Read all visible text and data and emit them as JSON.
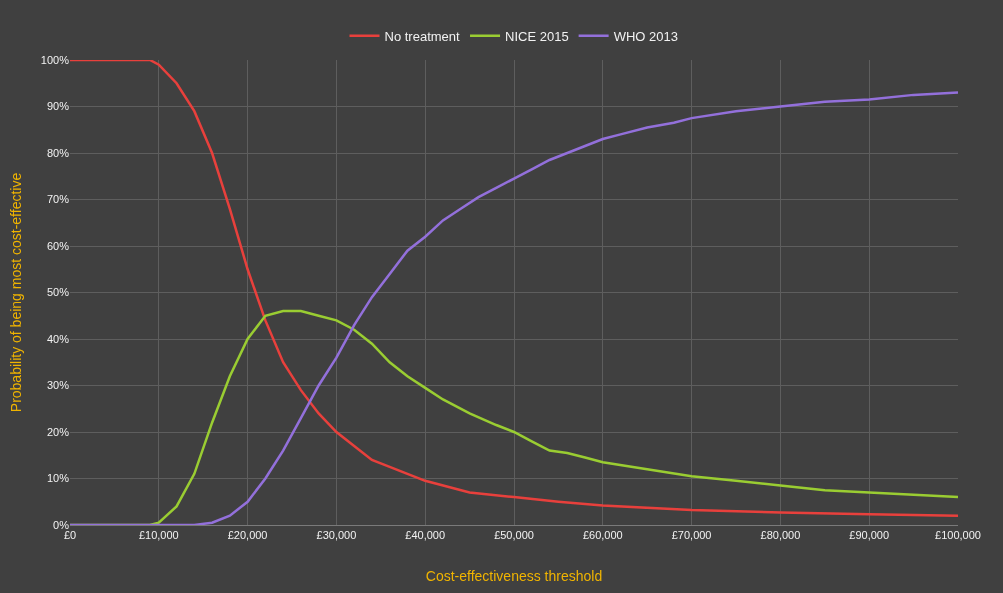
{
  "chart_data": {
    "type": "line",
    "xlabel": "Cost-effectiveness threshold",
    "ylabel": "Probability of being most cost-effective",
    "xlim": [
      0,
      100000
    ],
    "ylim": [
      0,
      100
    ],
    "xticks": [
      {
        "value": 0,
        "label": "£0"
      },
      {
        "value": 10000,
        "label": "£10,000"
      },
      {
        "value": 20000,
        "label": "£20,000"
      },
      {
        "value": 30000,
        "label": "£30,000"
      },
      {
        "value": 40000,
        "label": "£40,000"
      },
      {
        "value": 50000,
        "label": "£50,000"
      },
      {
        "value": 60000,
        "label": "£60,000"
      },
      {
        "value": 70000,
        "label": "£70,000"
      },
      {
        "value": 80000,
        "label": "£80,000"
      },
      {
        "value": 90000,
        "label": "£90,000"
      },
      {
        "value": 100000,
        "label": "£100,000"
      }
    ],
    "yticks": [
      {
        "value": 0,
        "label": "0%"
      },
      {
        "value": 10,
        "label": "10%"
      },
      {
        "value": 20,
        "label": "20%"
      },
      {
        "value": 30,
        "label": "30%"
      },
      {
        "value": 40,
        "label": "40%"
      },
      {
        "value": 50,
        "label": "50%"
      },
      {
        "value": 60,
        "label": "60%"
      },
      {
        "value": 70,
        "label": "70%"
      },
      {
        "value": 80,
        "label": "80%"
      },
      {
        "value": 90,
        "label": "90%"
      },
      {
        "value": 100,
        "label": "100%"
      }
    ],
    "grid": true,
    "legend": "top",
    "marker": "none",
    "line_style": "solid",
    "series": [
      {
        "name": "No treatment",
        "color": "#e8403c",
        "x": [
          0,
          5000,
          9000,
          10000,
          12000,
          14000,
          16000,
          18000,
          20000,
          22000,
          24000,
          26000,
          28000,
          30000,
          32000,
          34000,
          36000,
          38000,
          40000,
          45000,
          50000,
          55000,
          60000,
          70000,
          80000,
          90000,
          100000
        ],
        "values": [
          100,
          100,
          100,
          99,
          95,
          89,
          80,
          68,
          55,
          44,
          35,
          29,
          24,
          20,
          17,
          14,
          12.5,
          11,
          9.5,
          7,
          6,
          5,
          4.2,
          3.2,
          2.7,
          2.3,
          2
        ]
      },
      {
        "name": "NICE 2015",
        "color": "#9acd32",
        "x": [
          0,
          5000,
          9000,
          10000,
          12000,
          14000,
          16000,
          18000,
          20000,
          22000,
          24000,
          26000,
          28000,
          30000,
          32000,
          34000,
          36000,
          38000,
          40000,
          42000,
          45000,
          48000,
          50000,
          52000,
          54000,
          56000,
          58000,
          60000,
          65000,
          70000,
          75000,
          80000,
          85000,
          90000,
          95000,
          100000
        ],
        "values": [
          0,
          0,
          0,
          0.5,
          4,
          11,
          22,
          32,
          40,
          45,
          46,
          46,
          45,
          44,
          42,
          39,
          35,
          32,
          29.5,
          27,
          24,
          21.5,
          20,
          18,
          16,
          15.5,
          14.5,
          13.5,
          12,
          10.5,
          9.5,
          8.5,
          7.5,
          7,
          6.5,
          6
        ]
      },
      {
        "name": "WHO 2013",
        "color": "#9370db",
        "x": [
          0,
          5000,
          10000,
          14000,
          16000,
          18000,
          20000,
          22000,
          24000,
          26000,
          28000,
          30000,
          32000,
          34000,
          36000,
          38000,
          40000,
          42000,
          44000,
          46000,
          48000,
          50000,
          52000,
          54000,
          56000,
          58000,
          60000,
          62000,
          65000,
          68000,
          70000,
          75000,
          80000,
          85000,
          90000,
          95000,
          100000
        ],
        "values": [
          0,
          0,
          0,
          0,
          0.5,
          2,
          5,
          10,
          16,
          23,
          30,
          36,
          43,
          49,
          54,
          59,
          62,
          65.5,
          68,
          70.5,
          72.5,
          74.5,
          76.5,
          78.5,
          80,
          81.5,
          83,
          84,
          85.5,
          86.5,
          87.5,
          89,
          90,
          91,
          91.5,
          92.5,
          93
        ]
      }
    ]
  }
}
